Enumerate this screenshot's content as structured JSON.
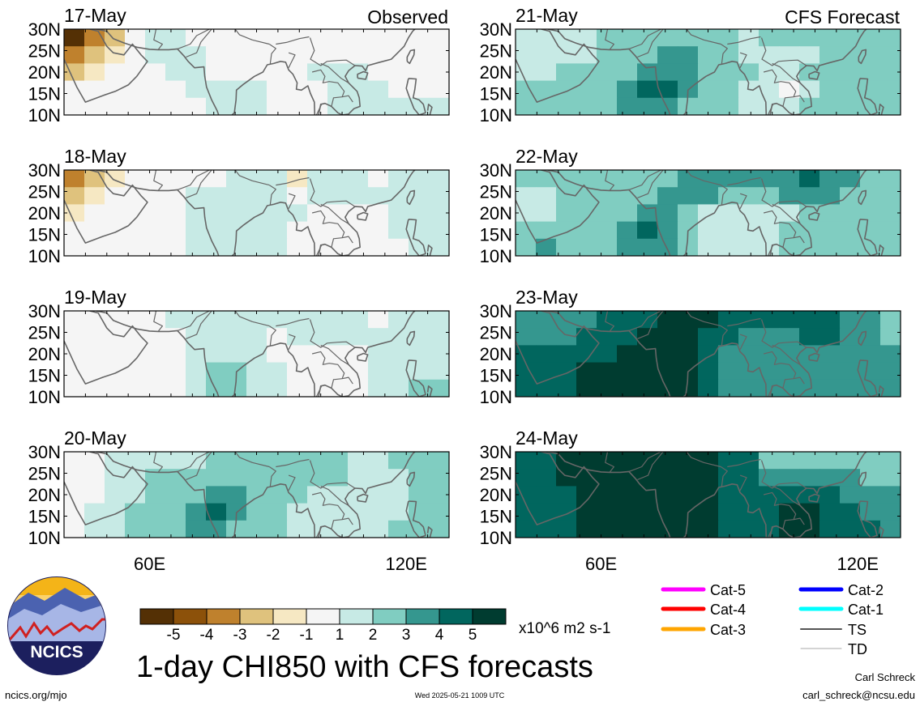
{
  "colors": {
    "neg5": "#543005",
    "neg4": "#8c510a",
    "neg3": "#bf812d",
    "neg2": "#dfc27d",
    "neg1": "#f6e8c3",
    "zero": "#f5f5f5",
    "pos1": "#c7eae5",
    "pos2": "#80cdc1",
    "pos3": "#35978f",
    "pos4": "#01665e",
    "pos5": "#003c30",
    "coast": "#666666",
    "cat5": "#ff00ff",
    "cat4": "#ff0000",
    "cat3": "#ffa500",
    "cat2": "#0000ff",
    "cat1": "#00ffff",
    "ts": "#555555",
    "td": "#aaaaaa"
  },
  "chart_data": {
    "type": "heatmap",
    "title": "1-day CHI850 with CFS forecasts",
    "units": "x10^6 m2 s-1",
    "column_titles": {
      "observed": "Observed",
      "forecast": "CFS Forecast"
    },
    "y_ticks": [
      "30N",
      "25N",
      "20N",
      "15N",
      "10N"
    ],
    "x_ticks": [
      "60E",
      "120E"
    ],
    "domain": {
      "lon": [
        40,
        130
      ],
      "lat": [
        10,
        30
      ]
    },
    "panels": [
      {
        "date": "17-May",
        "kind": "observed",
        "field": [
          [
            -5,
            -3,
            -2,
            0,
            1,
            1,
            0,
            0,
            0,
            0,
            0,
            0,
            0,
            0,
            0,
            0,
            0,
            0,
            0
          ],
          [
            -3,
            -2,
            -1,
            0,
            1,
            1,
            1,
            0,
            0,
            0,
            0,
            0,
            0,
            0,
            0,
            0,
            0,
            0,
            0
          ],
          [
            -2,
            -1,
            0,
            0,
            0,
            1,
            1,
            0,
            0,
            0,
            0,
            0,
            1,
            1,
            1,
            0,
            0,
            0,
            0
          ],
          [
            0,
            0,
            0,
            0,
            0,
            0,
            1,
            1,
            1,
            1,
            0,
            0,
            0,
            1,
            1,
            1,
            0,
            0,
            0
          ],
          [
            0,
            0,
            0,
            0,
            0,
            0,
            0,
            1,
            1,
            1,
            0,
            0,
            0,
            1,
            1,
            1,
            1,
            1,
            1
          ]
        ]
      },
      {
        "date": "18-May",
        "kind": "observed",
        "field": [
          [
            -3,
            -2,
            -1,
            0,
            0,
            0,
            0,
            0,
            1,
            1,
            1,
            -1,
            1,
            1,
            1,
            0,
            1,
            1,
            1
          ],
          [
            -2,
            -1,
            0,
            0,
            0,
            0,
            1,
            1,
            1,
            1,
            1,
            0,
            1,
            1,
            1,
            1,
            1,
            1,
            1
          ],
          [
            -1,
            0,
            0,
            0,
            0,
            0,
            1,
            1,
            1,
            1,
            1,
            1,
            0,
            0,
            0,
            0,
            1,
            1,
            1
          ],
          [
            0,
            0,
            0,
            0,
            0,
            0,
            1,
            1,
            1,
            1,
            1,
            0,
            0,
            0,
            0,
            0,
            1,
            1,
            1
          ],
          [
            0,
            0,
            0,
            0,
            0,
            0,
            1,
            1,
            1,
            1,
            1,
            0,
            0,
            0,
            0,
            0,
            0,
            1,
            1
          ]
        ]
      },
      {
        "date": "19-May",
        "kind": "observed",
        "field": [
          [
            0,
            0,
            0,
            0,
            0,
            1,
            1,
            1,
            1,
            1,
            1,
            1,
            1,
            1,
            1,
            0,
            1,
            1,
            1
          ],
          [
            0,
            0,
            0,
            0,
            0,
            0,
            1,
            1,
            1,
            1,
            0,
            1,
            1,
            1,
            1,
            1,
            1,
            1,
            1
          ],
          [
            0,
            0,
            0,
            0,
            0,
            0,
            1,
            1,
            1,
            1,
            0,
            0,
            0,
            0,
            0,
            1,
            1,
            1,
            1
          ],
          [
            0,
            0,
            0,
            0,
            0,
            0,
            1,
            2,
            2,
            1,
            1,
            0,
            0,
            0,
            0,
            1,
            1,
            1,
            1
          ],
          [
            0,
            0,
            0,
            0,
            0,
            0,
            1,
            2,
            2,
            1,
            1,
            0,
            0,
            0,
            0,
            1,
            1,
            2,
            2
          ]
        ]
      },
      {
        "date": "20-May",
        "kind": "observed",
        "field": [
          [
            0,
            0,
            1,
            1,
            1,
            1,
            1,
            2,
            2,
            2,
            2,
            2,
            2,
            2,
            1,
            1,
            2,
            2,
            2
          ],
          [
            0,
            0,
            1,
            1,
            2,
            2,
            2,
            2,
            2,
            2,
            2,
            2,
            2,
            2,
            1,
            1,
            1,
            2,
            2
          ],
          [
            0,
            0,
            1,
            1,
            2,
            2,
            2,
            3,
            3,
            2,
            2,
            2,
            1,
            1,
            1,
            1,
            1,
            2,
            2
          ],
          [
            0,
            1,
            1,
            2,
            2,
            2,
            3,
            4,
            3,
            2,
            2,
            1,
            1,
            1,
            1,
            1,
            1,
            2,
            2
          ],
          [
            0,
            1,
            1,
            2,
            2,
            2,
            3,
            3,
            2,
            2,
            2,
            1,
            1,
            1,
            1,
            1,
            2,
            2,
            2
          ]
        ]
      },
      {
        "date": "21-May",
        "kind": "forecast",
        "field": [
          [
            1,
            1,
            1,
            1,
            2,
            2,
            2,
            2,
            2,
            2,
            2,
            1,
            2,
            2,
            2,
            2,
            2,
            2,
            2
          ],
          [
            1,
            1,
            1,
            1,
            2,
            2,
            2,
            3,
            3,
            2,
            2,
            1,
            1,
            1,
            1,
            2,
            2,
            2,
            2
          ],
          [
            1,
            1,
            2,
            2,
            2,
            2,
            3,
            3,
            3,
            2,
            2,
            2,
            1,
            1,
            2,
            2,
            2,
            2,
            2
          ],
          [
            2,
            2,
            2,
            2,
            2,
            3,
            4,
            4,
            3,
            2,
            2,
            1,
            1,
            0,
            1,
            2,
            2,
            2,
            2
          ],
          [
            2,
            2,
            2,
            2,
            2,
            3,
            3,
            3,
            2,
            2,
            2,
            1,
            1,
            1,
            2,
            2,
            2,
            2,
            2
          ]
        ]
      },
      {
        "date": "22-May",
        "kind": "forecast",
        "field": [
          [
            2,
            2,
            2,
            2,
            2,
            2,
            2,
            2,
            3,
            3,
            3,
            3,
            3,
            3,
            4,
            3,
            3,
            2,
            2
          ],
          [
            1,
            1,
            2,
            2,
            2,
            2,
            2,
            3,
            3,
            3,
            2,
            2,
            2,
            3,
            3,
            3,
            2,
            2,
            2
          ],
          [
            1,
            1,
            2,
            2,
            2,
            2,
            3,
            3,
            2,
            1,
            1,
            1,
            1,
            1,
            2,
            2,
            2,
            2,
            2
          ],
          [
            2,
            2,
            2,
            2,
            2,
            3,
            4,
            3,
            2,
            1,
            1,
            1,
            1,
            2,
            2,
            2,
            2,
            2,
            2
          ],
          [
            2,
            3,
            2,
            2,
            2,
            3,
            3,
            3,
            2,
            1,
            1,
            1,
            1,
            2,
            2,
            2,
            2,
            2,
            2
          ]
        ]
      },
      {
        "date": "23-May",
        "kind": "forecast",
        "field": [
          [
            3,
            3,
            3,
            3,
            4,
            4,
            4,
            5,
            5,
            5,
            4,
            4,
            4,
            4,
            4,
            4,
            3,
            3,
            2
          ],
          [
            3,
            3,
            3,
            4,
            4,
            4,
            5,
            5,
            5,
            4,
            4,
            3,
            3,
            3,
            4,
            4,
            3,
            3,
            2
          ],
          [
            4,
            4,
            4,
            4,
            4,
            5,
            5,
            5,
            5,
            4,
            3,
            3,
            3,
            3,
            3,
            3,
            3,
            3,
            3
          ],
          [
            4,
            4,
            4,
            5,
            5,
            5,
            5,
            5,
            5,
            4,
            3,
            3,
            3,
            3,
            3,
            3,
            3,
            3,
            3
          ],
          [
            4,
            4,
            4,
            5,
            5,
            5,
            5,
            5,
            5,
            4,
            3,
            3,
            3,
            3,
            3,
            3,
            3,
            3,
            3
          ]
        ]
      },
      {
        "date": "24-May",
        "kind": "forecast",
        "field": [
          [
            4,
            4,
            5,
            5,
            5,
            5,
            5,
            5,
            5,
            5,
            4,
            4,
            2,
            2,
            2,
            2,
            2,
            2,
            2
          ],
          [
            4,
            4,
            5,
            5,
            5,
            5,
            5,
            5,
            5,
            5,
            4,
            4,
            3,
            3,
            3,
            3,
            3,
            2,
            2
          ],
          [
            4,
            4,
            4,
            5,
            5,
            5,
            5,
            5,
            5,
            5,
            4,
            4,
            4,
            4,
            4,
            4,
            3,
            3,
            3
          ],
          [
            4,
            4,
            4,
            5,
            5,
            5,
            5,
            5,
            5,
            5,
            4,
            4,
            4,
            5,
            5,
            4,
            4,
            3,
            3
          ],
          [
            4,
            4,
            4,
            5,
            5,
            5,
            5,
            5,
            5,
            5,
            4,
            4,
            4,
            5,
            5,
            4,
            4,
            4,
            3
          ]
        ]
      }
    ],
    "colorbar": {
      "values": [
        -5,
        -4,
        -3,
        -2,
        -1,
        1,
        2,
        3,
        4,
        5
      ]
    },
    "legend": {
      "placement": "bottom-right",
      "entries": [
        {
          "label": "Cat-5",
          "color_key": "cat5"
        },
        {
          "label": "Cat-4",
          "color_key": "cat4"
        },
        {
          "label": "Cat-3",
          "color_key": "cat3"
        },
        {
          "label": "Cat-2",
          "color_key": "cat2"
        },
        {
          "label": "Cat-1",
          "color_key": "cat1"
        },
        {
          "label": "TS",
          "color_key": "ts"
        },
        {
          "label": "TD",
          "color_key": "td"
        }
      ]
    }
  },
  "footer": {
    "logo_text": "NCICS",
    "url": "ncics.org/mjo",
    "timestamp": "Wed 2025-05-21 1009 UTC",
    "author": "Carl Schreck",
    "email": "carl_schreck@ncsu.edu"
  }
}
